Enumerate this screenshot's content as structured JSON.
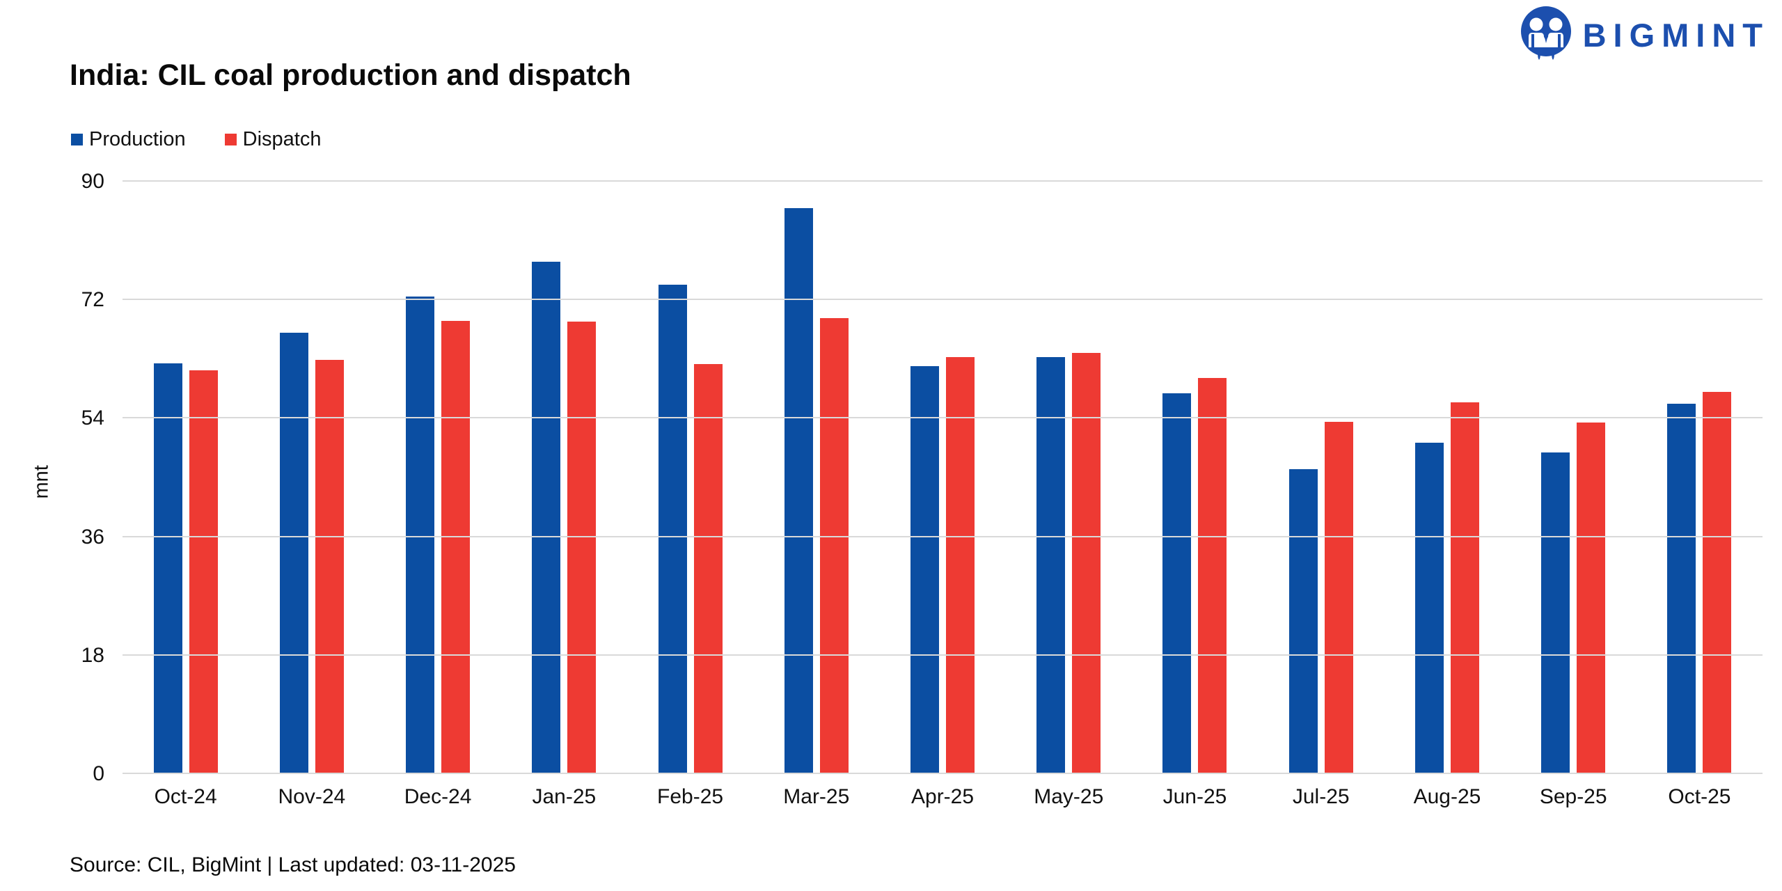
{
  "page": {
    "title": "India: CIL coal production and dispatch",
    "brand": "BIGMINT",
    "source_note": "Source: CIL, BigMint | Last updated: 03-11-2025"
  },
  "colors": {
    "production": "#0B4EA2",
    "dispatch": "#EE3A33",
    "logo_blue": "#1C4FAE",
    "gridline": "#D9D9D9",
    "text": "#111111"
  },
  "chart_data": {
    "type": "bar",
    "title": "India: CIL coal production and dispatch",
    "categories": [
      "Oct-24",
      "Nov-24",
      "Dec-24",
      "Jan-25",
      "Feb-25",
      "Mar-25",
      "Apr-25",
      "May-25",
      "Jun-25",
      "Jul-25",
      "Aug-25",
      "Sep-25",
      "Oct-25"
    ],
    "series": [
      {
        "name": "Production",
        "color": "#0B4EA2",
        "values": [
          62.4,
          67.1,
          72.5,
          77.8,
          74.4,
          86.0,
          62.0,
          63.4,
          57.8,
          46.3,
          50.3,
          48.9,
          56.3
        ]
      },
      {
        "name": "Dispatch",
        "color": "#EE3A33",
        "values": [
          61.3,
          62.9,
          68.8,
          68.7,
          62.3,
          69.3,
          63.3,
          64.0,
          60.2,
          53.5,
          56.5,
          53.4,
          58.1
        ]
      }
    ],
    "xlabel": "",
    "ylabel": "mnt",
    "ylim": [
      0,
      90
    ],
    "yticks": [
      0,
      18,
      36,
      54,
      72,
      90
    ],
    "grid": true,
    "legend_position": "top-left"
  }
}
